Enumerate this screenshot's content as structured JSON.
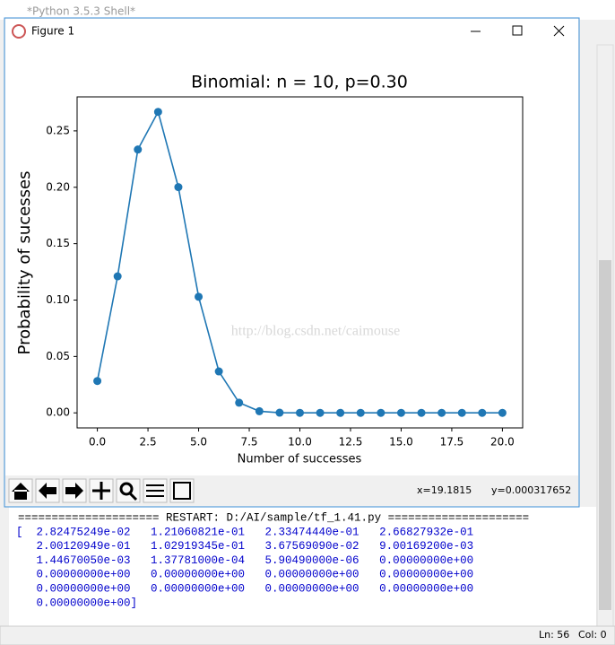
{
  "shell": {
    "title": "*Python 3.5.3 Shell*",
    "restart": "===================== RESTART: D:/AI/sample/tf_1.41.py =====================",
    "output": [
      "[  2.82475249e-02   1.21060821e-01   2.33474440e-01   2.66827932e-01",
      "   2.00120949e-01   1.02919345e-01   3.67569090e-02   9.00169200e-03",
      "   1.44670050e-03   1.37781000e-04   5.90490000e-06   0.00000000e+00",
      "   0.00000000e+00   0.00000000e+00   0.00000000e+00   0.00000000e+00",
      "   0.00000000e+00   0.00000000e+00   0.00000000e+00   0.00000000e+00",
      "   0.00000000e+00]"
    ],
    "status": [
      "Ln: 56",
      "Col: 0"
    ]
  },
  "figure": {
    "title": "Figure 1",
    "coords": [
      "x=19.1815",
      "y=0.000317652"
    ]
  },
  "watermark": "http://blog.csdn.net/caimouse",
  "chart_data": {
    "type": "line",
    "title": "Binomial: n = 10, p=0.30",
    "xlabel": "Number of successes",
    "ylabel": "Probability of sucesses",
    "x": [
      0,
      1,
      2,
      3,
      4,
      5,
      6,
      7,
      8,
      9,
      10,
      11,
      12,
      13,
      14,
      15,
      16,
      17,
      18,
      19,
      20
    ],
    "series": [
      {
        "name": "Binomial",
        "color": "#1f77b4",
        "values": [
          0.0282475249,
          0.121060821,
          0.23347444,
          0.266827932,
          0.200120949,
          0.102919345,
          0.036756909,
          0.009001692,
          0.0014467005,
          0.000137781,
          5.9049e-06,
          0,
          0,
          0,
          0,
          0,
          0,
          0,
          0,
          0,
          0
        ]
      }
    ],
    "xlim": [
      -1,
      21
    ],
    "xticks": [
      {
        "value": 0,
        "label": "0.0"
      },
      {
        "value": 2.5,
        "label": "2.5"
      },
      {
        "value": 5,
        "label": "5.0"
      },
      {
        "value": 7.5,
        "label": "7.5"
      },
      {
        "value": 10,
        "label": "10.0"
      },
      {
        "value": 12.5,
        "label": "12.5"
      },
      {
        "value": 15,
        "label": "15.0"
      },
      {
        "value": 17.5,
        "label": "17.5"
      },
      {
        "value": 20,
        "label": "20.0"
      }
    ],
    "ylim": [
      -0.01334,
      0.28014
    ],
    "yticks": [
      {
        "value": 0,
        "label": "0.00"
      },
      {
        "value": 0.05,
        "label": "0.05"
      },
      {
        "value": 0.1,
        "label": "0.10"
      },
      {
        "value": 0.15,
        "label": "0.15"
      },
      {
        "value": 0.2,
        "label": "0.20"
      },
      {
        "value": 0.25,
        "label": "0.25"
      }
    ],
    "grid": false
  }
}
